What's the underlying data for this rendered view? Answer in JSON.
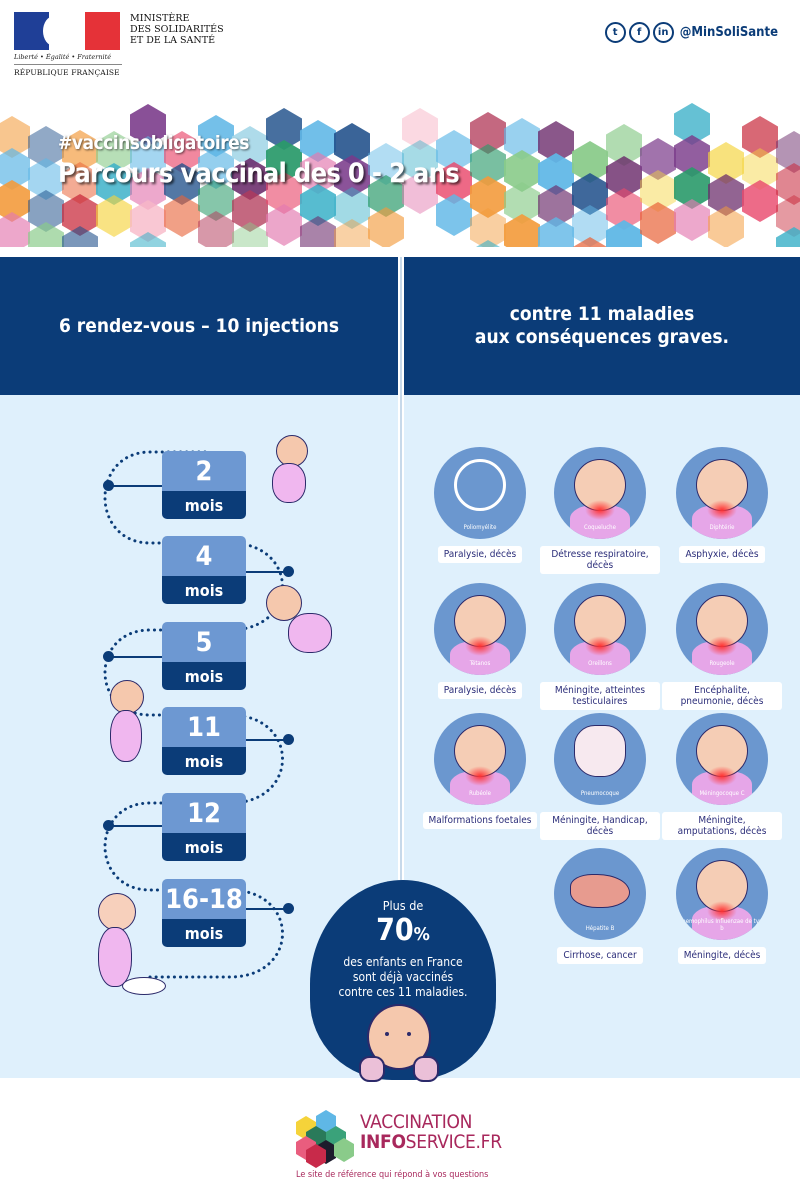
{
  "header": {
    "government": {
      "motto": "Liberté • Égalité • Fraternité",
      "republic": "RÉPUBLIQUE FRANÇAISE",
      "ministry_lines": [
        "MINISTÈRE",
        "DES SOLIDARITÉS",
        "ET DE LA SANTÉ"
      ]
    },
    "social": {
      "icons": [
        "twitter-icon",
        "facebook-icon",
        "linkedin-icon"
      ],
      "icon_glyphs": [
        "t",
        "f",
        "in"
      ],
      "handle": "@MinSoliSante"
    }
  },
  "banner": {
    "hashtag": "#vaccinsobligatoires",
    "title": "Parcours vaccinal des 0 - 2 ans"
  },
  "left_column": {
    "heading": "6 rendez-vous – 10 injections",
    "appointments": [
      {
        "value": "2",
        "unit": "mois"
      },
      {
        "value": "4",
        "unit": "mois"
      },
      {
        "value": "5",
        "unit": "mois"
      },
      {
        "value": "11",
        "unit": "mois"
      },
      {
        "value": "12",
        "unit": "mois"
      },
      {
        "value": "16-18",
        "unit": "mois"
      }
    ]
  },
  "right_column": {
    "heading_line1": "contre 11 maladies",
    "heading_line2": "aux conséquences graves.",
    "diseases": [
      {
        "name": "Poliomyélite",
        "consequence": "Paralysie, décès",
        "art": "wheelchair"
      },
      {
        "name": "Coqueluche",
        "consequence": "Détresse respiratoire, décès",
        "art": "cough"
      },
      {
        "name": "Diphtérie",
        "consequence": "Asphyxie, décès",
        "art": "baby-throat"
      },
      {
        "name": "Tétanos",
        "consequence": "Paralysie, décès",
        "art": "baby-chest"
      },
      {
        "name": "Oreillons",
        "consequence": "Méningite, atteintes testiculaires",
        "art": "baby-cheeks"
      },
      {
        "name": "Rougeole",
        "consequence": "Encéphalite, pneumonie, décès",
        "art": "baby-rash"
      },
      {
        "name": "Rubéole",
        "consequence": "Malformations foetales",
        "art": "baby-rash"
      },
      {
        "name": "Pneumocoque",
        "consequence": "Méningite, Handicap, décès",
        "art": "lungs"
      },
      {
        "name": "Méningocoque C",
        "consequence": "Méningite, amputations, décès",
        "art": "baby-head"
      },
      {
        "name": "Hépatite B",
        "consequence": "Cirrhose, cancer",
        "art": "liver"
      },
      {
        "name": "Haemophilus Influenzae de type b",
        "consequence": "Méningite, décès",
        "art": "baby-throat"
      }
    ]
  },
  "stat": {
    "prefix": "Plus de",
    "value": "70",
    "unit": "%",
    "line1": "des enfants en France",
    "line2": "sont déjà vaccinés",
    "line3": "contre ces 11 maladies."
  },
  "footer": {
    "brand_line1": "VACCINATION",
    "brand_info": "INFO",
    "brand_rest": "SERVICE.FR",
    "tagline": "Le site de référence qui répond à vos questions"
  },
  "colors": {
    "navy": "#0b3c78",
    "light_bg": "#dff0fc",
    "calendar_top": "#6d98d2",
    "disease_circle": "#6b97cf",
    "brand_magenta": "#a8285c",
    "flag_blue": "#1f3f97",
    "flag_red": "#e53238"
  }
}
